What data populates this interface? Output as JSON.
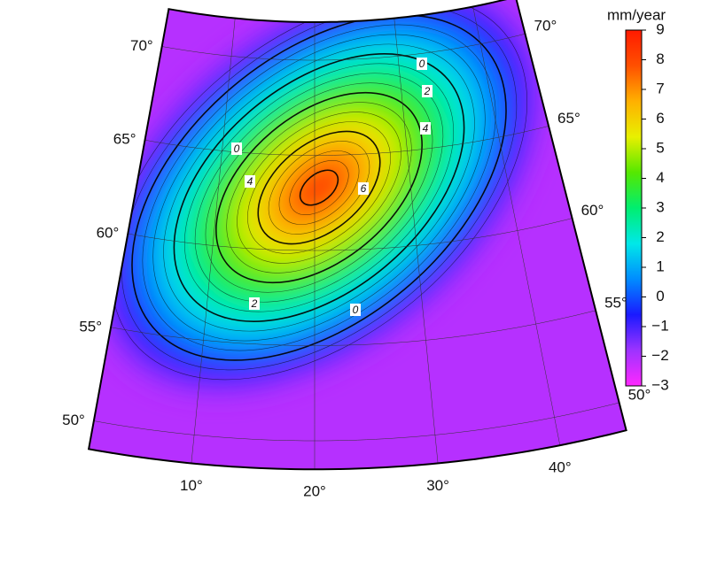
{
  "map": {
    "title": "mm/year",
    "parallels": [
      {
        "value": 50,
        "label": "50°"
      },
      {
        "value": 55,
        "label": "55°"
      },
      {
        "value": 60,
        "label": "60°"
      },
      {
        "value": 65,
        "label": "65°"
      },
      {
        "value": 70,
        "label": "70°"
      }
    ],
    "meridians": [
      {
        "value": 10,
        "label": "10°"
      },
      {
        "value": 20,
        "label": "20°"
      },
      {
        "value": 30,
        "label": "30°"
      },
      {
        "value": 40,
        "label": "40°"
      }
    ],
    "colorbar": {
      "lim": [
        -3,
        9
      ],
      "ticks": [
        9,
        8,
        7,
        6,
        5,
        4,
        3,
        2,
        1,
        0,
        {
          "value": -1,
          "label": "−1"
        },
        {
          "value": -2,
          "label": "−2"
        },
        {
          "value": -3,
          "label": "−3"
        }
      ],
      "colormap": [
        "#ff28ff",
        "#9d33ff",
        "#1a1aff",
        "#008cff",
        "#00e8e8",
        "#00ee70",
        "#55e800",
        "#e8f000",
        "#ffb000",
        "#ff5000",
        "#ff1a00"
      ]
    },
    "contour_labels": [
      0,
      2,
      4,
      0,
      4,
      6,
      2,
      0
    ]
  }
}
